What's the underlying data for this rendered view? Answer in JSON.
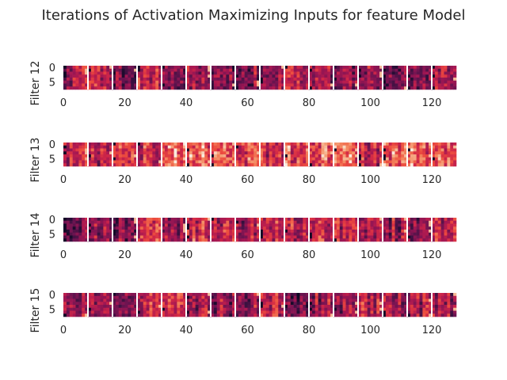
{
  "chart_data": {
    "type": "heatmap",
    "title": "Iterations of Activation Maximizing Inputs for feature Model",
    "grid": false,
    "colormap": "rocket",
    "x_range": [
      0,
      127
    ],
    "x_ticks": [
      0,
      20,
      40,
      60,
      80,
      100,
      120
    ],
    "y_ticks": [
      0,
      5
    ],
    "tiles_per_row": 16,
    "tile_size": [
      8,
      8
    ],
    "panels": [
      {
        "ylabel": "Filter 12",
        "mean_level": 0.4
      },
      {
        "ylabel": "Filter 13",
        "mean_level": 0.62
      },
      {
        "ylabel": "Filter 14",
        "mean_level": 0.48
      },
      {
        "ylabel": "Filter 15",
        "mean_level": 0.44
      }
    ]
  }
}
